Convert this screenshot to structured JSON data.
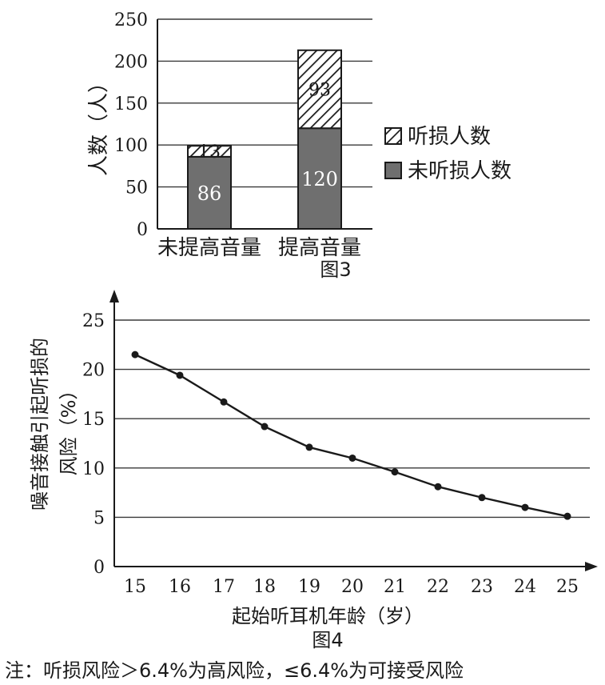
{
  "chart_data": [
    {
      "type": "bar",
      "title": "",
      "caption": "图3",
      "ylabel": "人数（人）",
      "xlabel": "",
      "ylim": [
        0,
        250
      ],
      "yticks": [
        0,
        50,
        100,
        150,
        200,
        250
      ],
      "categories": [
        "未提高音量",
        "提高音量"
      ],
      "stacked": true,
      "legend_position": "right",
      "grid": true,
      "series": [
        {
          "name": "未听损人数",
          "values": [
            86,
            120
          ],
          "color": "#6f6f6f"
        },
        {
          "name": "听损人数",
          "values": [
            13,
            93
          ],
          "pattern": "hatch"
        }
      ],
      "legend": [
        "听损人数",
        "未听损人数"
      ]
    },
    {
      "type": "line",
      "title": "",
      "caption": "图4",
      "ylabel": "噪音接触引起听损的风险（%）",
      "ylabel_parts": [
        "噪音接触引起听损的",
        "风险（%）"
      ],
      "xlabel": "起始听耳机年龄（岁）",
      "ylim": [
        0,
        27
      ],
      "yticks": [
        0,
        5,
        10,
        15,
        20,
        25
      ],
      "xlim": [
        15,
        25
      ],
      "xticks": [
        15,
        16,
        17,
        18,
        19,
        20,
        21,
        22,
        23,
        24,
        25
      ],
      "grid": true,
      "series": [
        {
          "x": [
            15,
            16,
            17,
            18,
            19,
            20,
            21,
            22,
            23,
            24,
            25
          ],
          "y": [
            21.5,
            19.4,
            16.7,
            14.2,
            12.1,
            11.0,
            9.6,
            8.1,
            7.0,
            6.0,
            5.1
          ]
        }
      ]
    }
  ],
  "note": "注：听损风险＞6.4%为高风险，≤6.4%为可接受风险"
}
